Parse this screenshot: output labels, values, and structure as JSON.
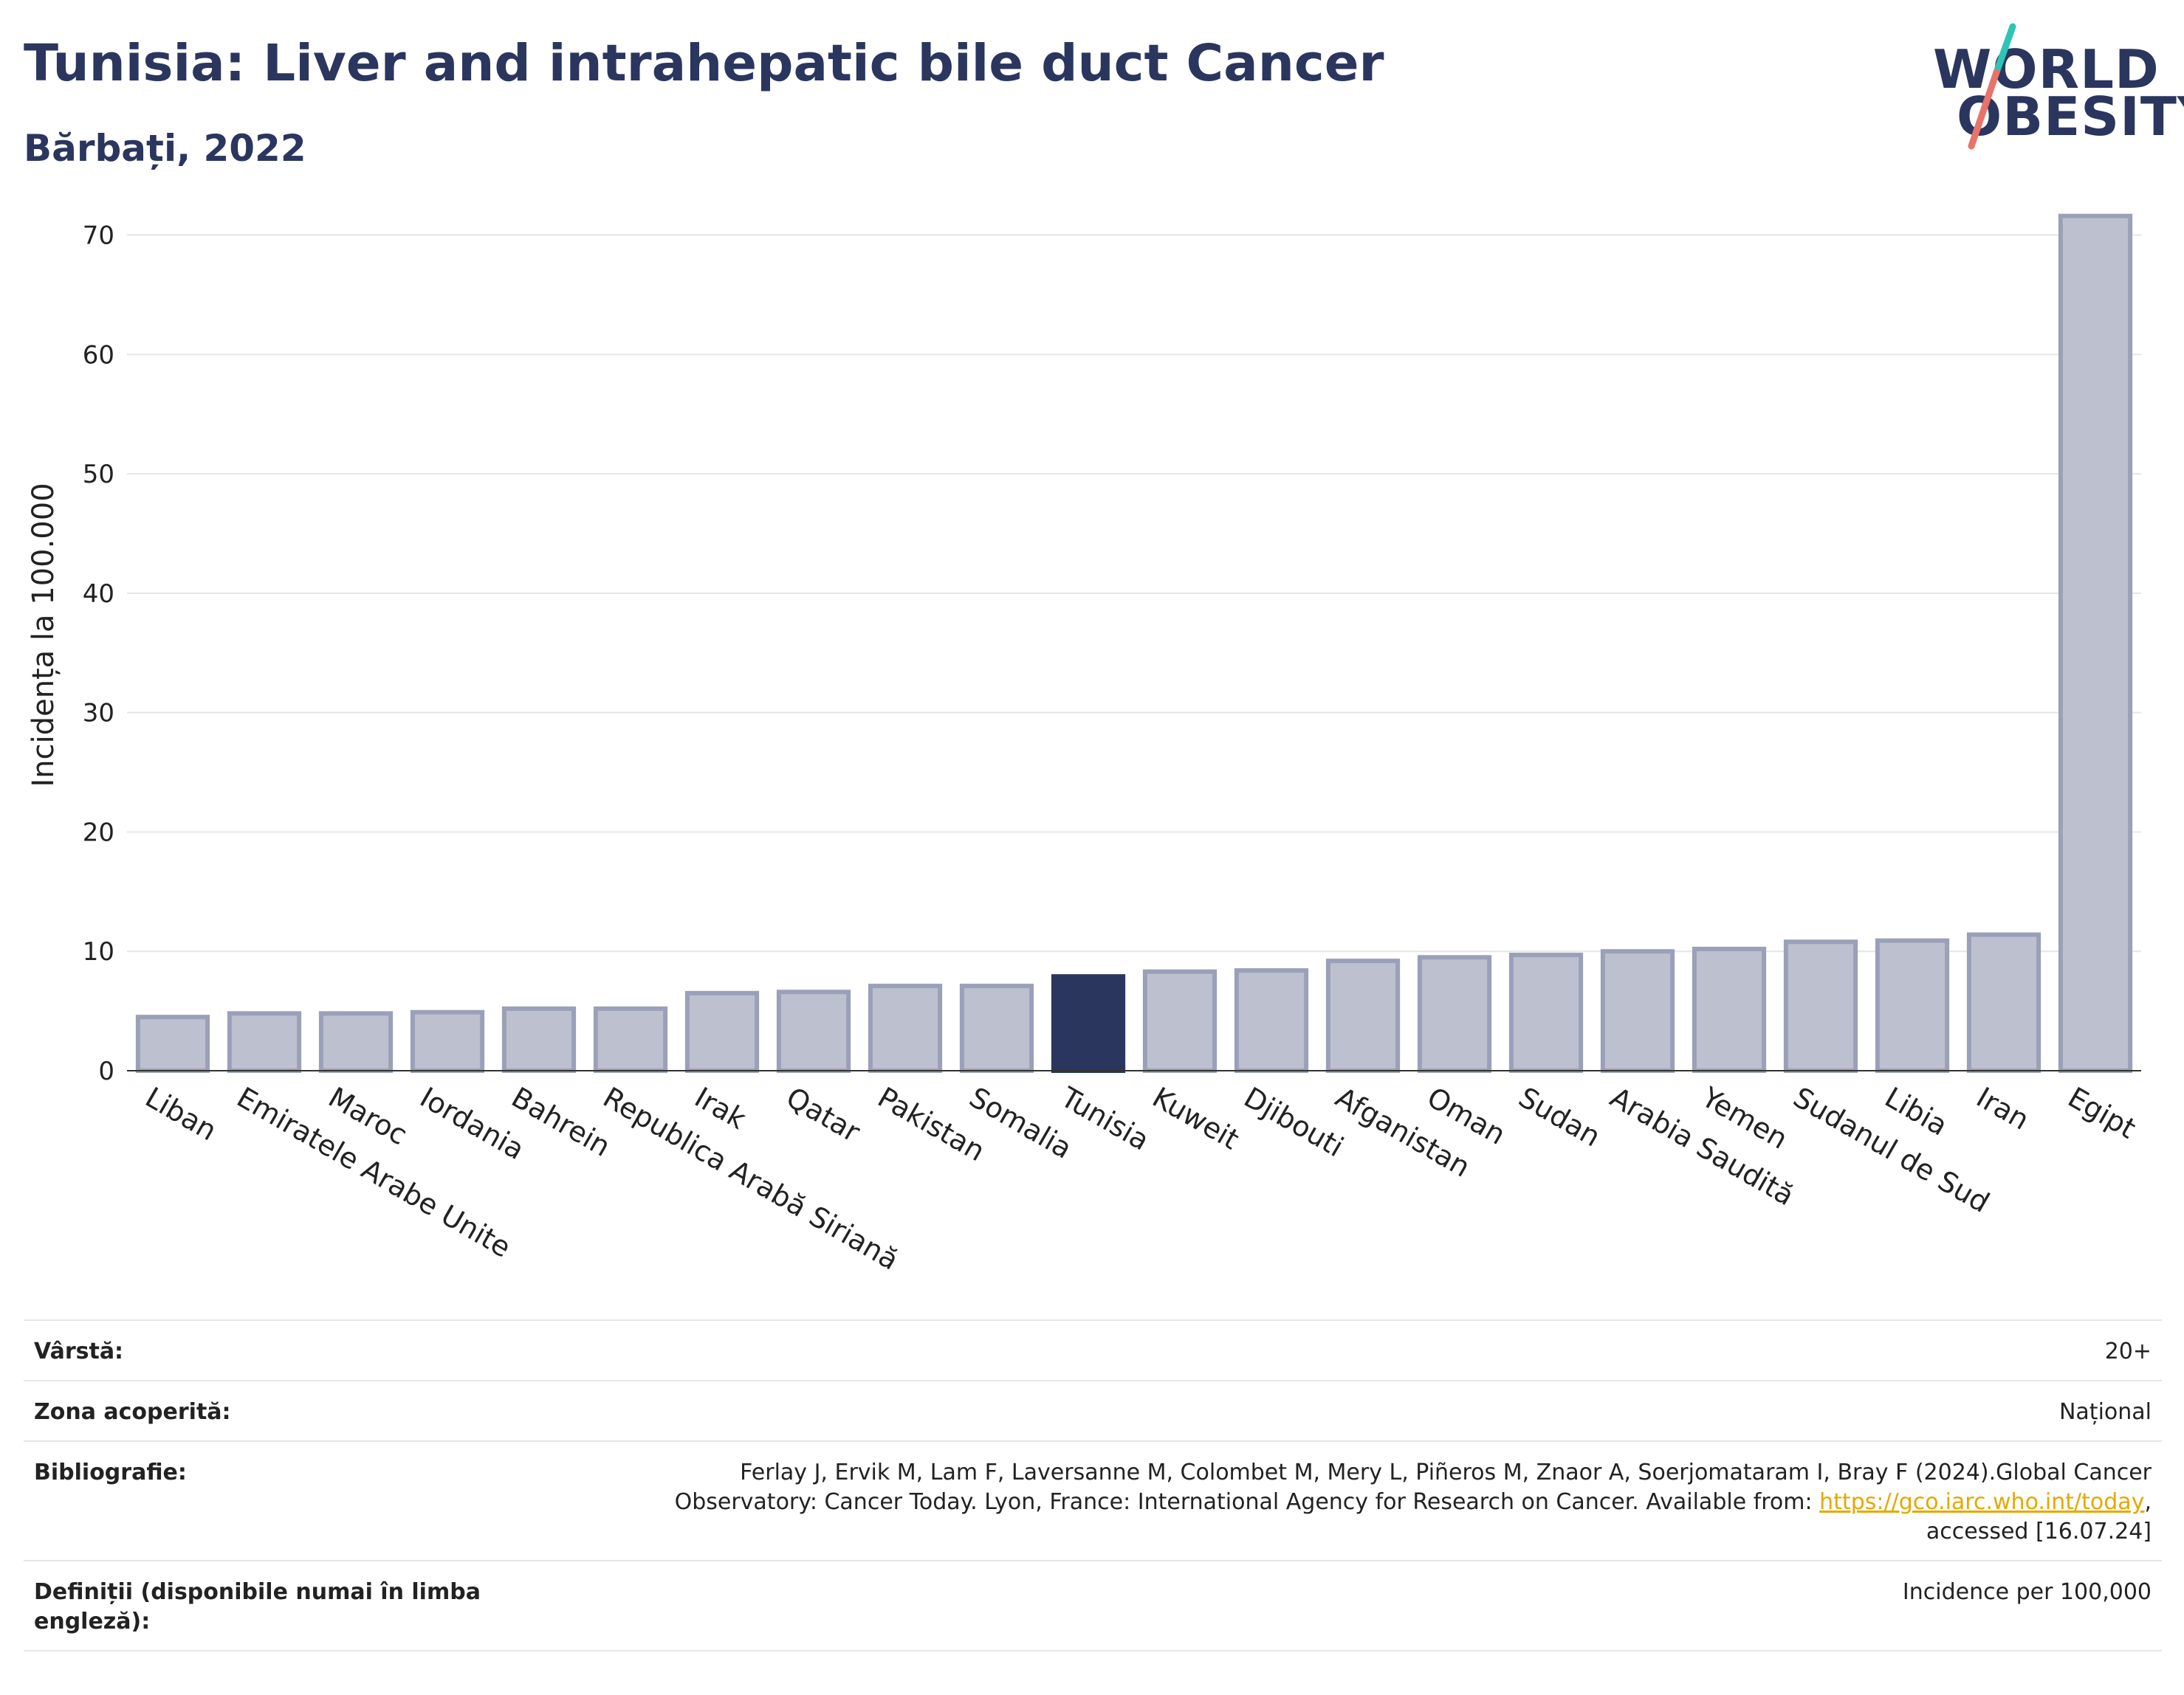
{
  "header": {
    "title": "Tunisia: Liver and intrahepatic bile duct Cancer",
    "subtitle": "Bărbați, 2022"
  },
  "logo": {
    "line1": "WORLD",
    "line2": "OBESITY",
    "colors": {
      "text": "#2b365f",
      "slash_top": "#2ec4b6",
      "slash_bottom": "#e8736a"
    }
  },
  "chart_data": {
    "type": "bar",
    "ylabel": "Incidența la 100.000",
    "xlabel": "",
    "ylim": [
      0,
      73
    ],
    "yticks": [
      0,
      10,
      20,
      30,
      40,
      50,
      60,
      70
    ],
    "grid": true,
    "highlight": "Tunisia",
    "colors": {
      "bar": "#bcc0cf",
      "bar_stroke": "#9aa0b8",
      "highlight": "#2b365f"
    },
    "categories": [
      "Liban",
      "Emiratele Arabe Unite",
      "Maroc",
      "Iordania",
      "Bahrein",
      "Republica Arabă Siriană",
      "Irak",
      "Qatar",
      "Pakistan",
      "Somalia",
      "Tunisia",
      "Kuweit",
      "Djibouti",
      "Afganistan",
      "Oman",
      "Sudan",
      "Arabia Saudită",
      "Yemen",
      "Sudanul de Sud",
      "Libia",
      "Iran",
      "Egipt"
    ],
    "values": [
      4.5,
      4.8,
      4.8,
      4.9,
      5.2,
      5.2,
      6.5,
      6.6,
      7.1,
      7.1,
      7.9,
      8.3,
      8.4,
      9.2,
      9.5,
      9.7,
      10.0,
      10.2,
      10.8,
      10.9,
      11.4,
      71.6
    ]
  },
  "meta": [
    {
      "key": "Vârstă:",
      "value": "20+"
    },
    {
      "key": "Zona acoperită:",
      "value": "Național"
    },
    {
      "key": "Bibliografie:",
      "value_line1": "Ferlay J, Ervik M, Lam F, Laversanne M, Colombet M, Mery L, Piñeros M, Znaor A, Soerjomataram I, Bray F (2024).Global Cancer",
      "value_line2_pre": "Observatory: Cancer Today. Lyon, France: International Agency for Research on Cancer. Available from: ",
      "value_link": "https://gco.iarc.who.int/today",
      "value_line2_post": ",",
      "value_line3": "accessed [16.07.24]"
    },
    {
      "key": "Definiții (disponibile numai în limba engleză):",
      "value": "Incidence per 100,000"
    }
  ]
}
